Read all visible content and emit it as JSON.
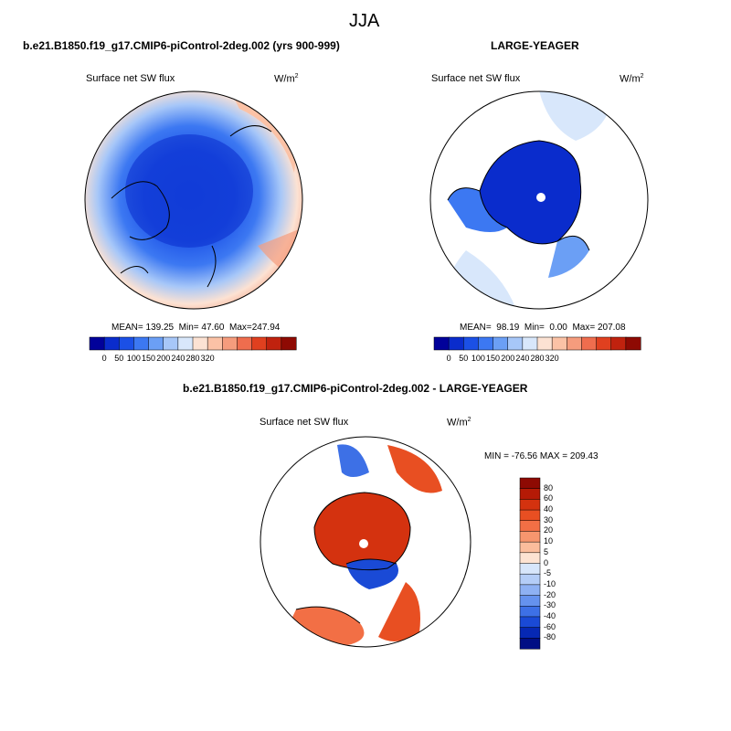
{
  "chart_data": {
    "type": "heatmap",
    "title": "JJA",
    "panels": [
      {
        "id": "control",
        "header": "b.e21.B1850.f19_g17.CMIP6-piControl-2deg.002 (yrs 900-999)",
        "variable": "Surface net SW flux",
        "units_base": "W/m",
        "units_exp": "2",
        "stats": {
          "mean_label": "MEAN=",
          "mean": "139.25",
          "min_label": "Min=",
          "min": "47.60",
          "max_label": "Max=",
          "max": "247.94"
        },
        "colorbar": {
          "levels": [
            "0",
            "50",
            "100",
            "150",
            "200",
            "240",
            "280",
            "320"
          ],
          "colors": [
            "#01019a",
            "#0a2ccc",
            "#1b50e6",
            "#3c78f2",
            "#6b9ff5",
            "#a7c7f8",
            "#d8e7fb",
            "#fce2d3",
            "#fbc2a6",
            "#f59c7d",
            "#ef6d4e",
            "#e0401f",
            "#c0220e",
            "#8e0a03"
          ]
        }
      },
      {
        "id": "obs",
        "header": "LARGE-YEAGER",
        "variable": "Surface net SW flux",
        "units_base": "W/m",
        "units_exp": "2",
        "stats": {
          "mean_label": "MEAN=",
          "mean": "98.19",
          "min_label": "Min=",
          "min": "0.00",
          "max_label": "Max=",
          "max": "207.08"
        },
        "colorbar": {
          "levels": [
            "0",
            "50",
            "100",
            "150",
            "200",
            "240",
            "280",
            "320"
          ],
          "colors": [
            "#01019a",
            "#0a2ccc",
            "#1b50e6",
            "#3c78f2",
            "#6b9ff5",
            "#a7c7f8",
            "#d8e7fb",
            "#fce2d3",
            "#fbc2a6",
            "#f59c7d",
            "#ef6d4e",
            "#e0401f",
            "#c0220e",
            "#8e0a03"
          ]
        }
      },
      {
        "id": "diff",
        "header": "b.e21.B1850.f19_g17.CMIP6-piControl-2deg.002 - LARGE-YEAGER",
        "variable": "Surface net SW flux",
        "units_base": "W/m",
        "units_exp": "2",
        "minmax_text": "MIN = -76.56 MAX = 209.43",
        "colorbar": {
          "levels": [
            "80",
            "60",
            "40",
            "30",
            "20",
            "10",
            "5",
            "0",
            "-5",
            "-10",
            "-20",
            "-30",
            "-40",
            "-60",
            "-80"
          ],
          "colors": [
            "#8e0a03",
            "#b51a06",
            "#d4320f",
            "#e84f22",
            "#f26f45",
            "#f7966e",
            "#fbbd9c",
            "#fde3d2",
            "#d7e6fb",
            "#b4cdf7",
            "#8eb1f3",
            "#6592ee",
            "#3d70e6",
            "#1a4ad6",
            "#0628b4",
            "#010e84"
          ]
        }
      }
    ]
  }
}
